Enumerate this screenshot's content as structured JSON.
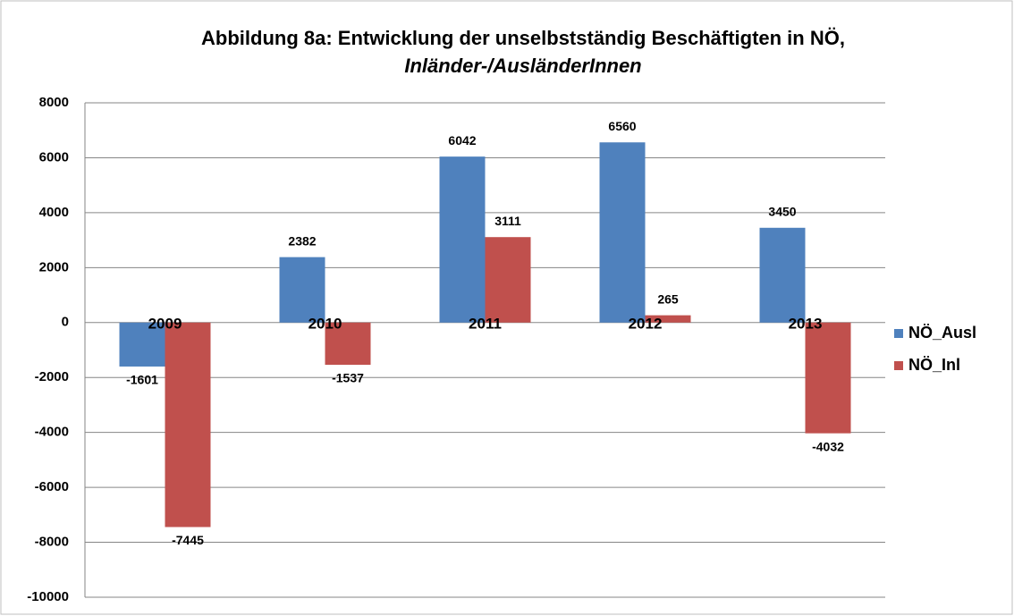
{
  "chart_data": {
    "type": "bar",
    "title": "Abbildung 8a: Entwicklung der unselbstständig Beschäftigten in NÖ,",
    "subtitle": "Inländer-/AusländerInnen",
    "categories": [
      "2009",
      "2010",
      "2011",
      "2012",
      "2013"
    ],
    "series": [
      {
        "name": "NÖ_Ausl",
        "color": "#4f81bd",
        "values": [
          -1601,
          2382,
          6042,
          6560,
          3450
        ]
      },
      {
        "name": "NÖ_Inl",
        "color": "#c0504d",
        "values": [
          -7445,
          -1537,
          3111,
          265,
          -4032
        ]
      }
    ],
    "ylim": [
      -10000,
      8000
    ],
    "yticks": [
      -10000,
      -8000,
      -6000,
      -4000,
      -2000,
      0,
      2000,
      4000,
      6000,
      8000
    ],
    "grid": true,
    "legend": "right"
  }
}
